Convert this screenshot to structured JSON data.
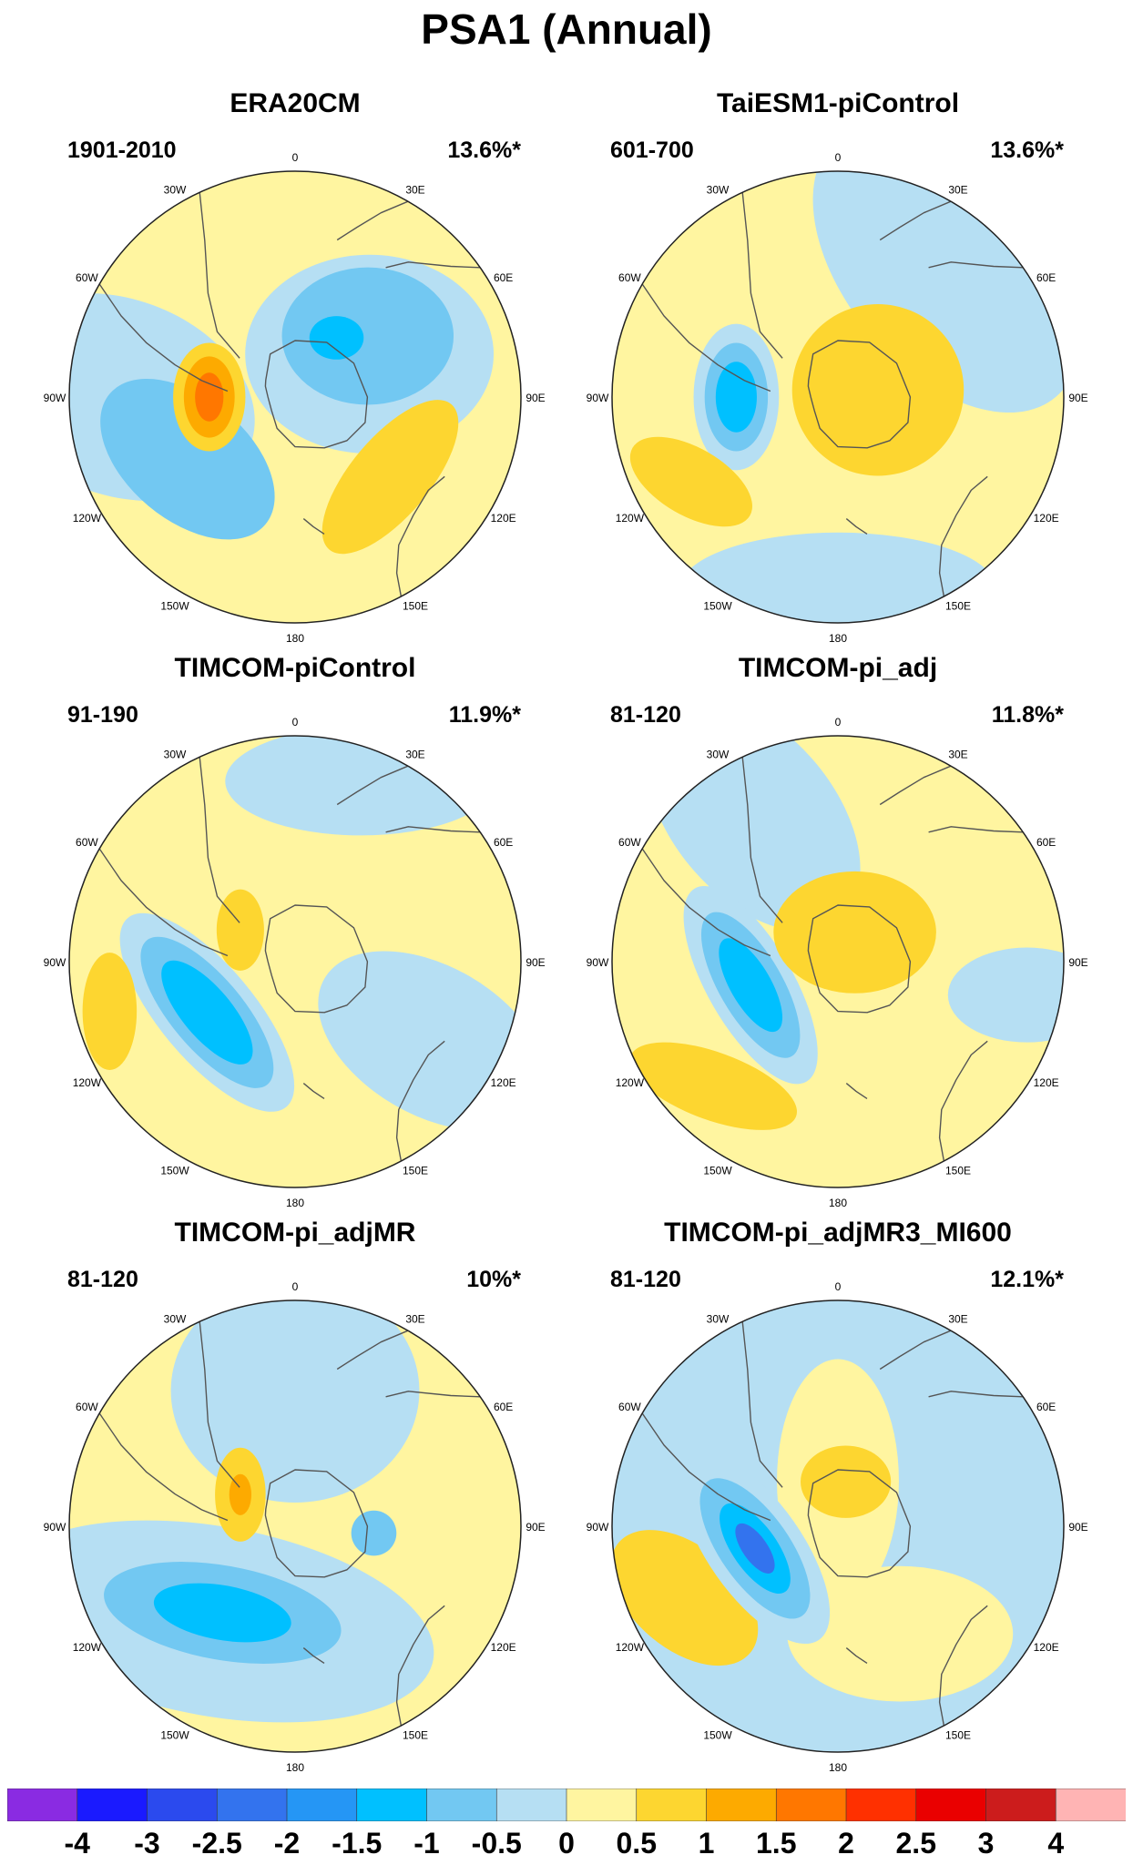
{
  "title": "PSA1 (Annual)",
  "legend": {
    "colors": [
      "#8a2be2",
      "#1a1aff",
      "#2b4aee",
      "#3373ee",
      "#2596f5",
      "#00c0ff",
      "#72c8f2",
      "#b6dff3",
      "#fff5a0",
      "#fdd630",
      "#fdaa00",
      "#ff7700",
      "#ff3000",
      "#ea0000",
      "#cc1c1c",
      "#ffb4b4"
    ],
    "labels": [
      "-4",
      "-3",
      "-2.5",
      "-2",
      "-1.5",
      "-1",
      "-0.5",
      "0",
      "0.5",
      "1",
      "1.5",
      "2",
      "2.5",
      "3",
      "4"
    ]
  },
  "lon_labels": [
    "0",
    "30E",
    "60E",
    "90E",
    "120E",
    "150E",
    "180",
    "150W",
    "120W",
    "90W",
    "60W",
    "30W"
  ],
  "panels": [
    {
      "title": "ERA20CM",
      "period": "1901-2010",
      "variance": "13.6%*",
      "background": "yellow",
      "blobs": [
        {
          "lon": 270,
          "r": 0.78,
          "size": 0.62,
          "ell": [
            1.0,
            0.7
          ],
          "rot": 20,
          "tone": "lightblue"
        },
        {
          "lon": 240,
          "r": 0.55,
          "size": 0.45,
          "ell": [
            1.0,
            0.6
          ],
          "rot": 40,
          "tone": "blue1"
        },
        {
          "lon": 60,
          "r": 0.38,
          "size": 0.55,
          "ell": [
            1.0,
            0.8
          ],
          "rot": 0,
          "tone": "lightblue"
        },
        {
          "lon": 50,
          "r": 0.42,
          "size": 0.38,
          "ell": [
            1.0,
            0.8
          ],
          "rot": 0,
          "tone": "blue1"
        },
        {
          "lon": 35,
          "r": 0.32,
          "size": 0.12,
          "ell": [
            1.0,
            0.8
          ],
          "rot": 0,
          "tone": "blue2"
        },
        {
          "lon": 270,
          "r": 0.38,
          "size": 0.2,
          "ell": [
            0.8,
            1.2
          ],
          "rot": 0,
          "tone": "yellow1"
        },
        {
          "lon": 270,
          "r": 0.38,
          "size": 0.15,
          "ell": [
            0.75,
            1.2
          ],
          "rot": 0,
          "tone": "orange1"
        },
        {
          "lon": 270,
          "r": 0.38,
          "size": 0.09,
          "ell": [
            0.7,
            1.2
          ],
          "rot": 0,
          "tone": "orange2"
        },
        {
          "lon": 130,
          "r": 0.55,
          "size": 0.35,
          "ell": [
            1.2,
            0.5
          ],
          "rot": -50,
          "tone": "yellow1"
        }
      ]
    },
    {
      "title": "TaiESM1-piControl",
      "period": "601-700",
      "variance": "13.6%*",
      "background": "yellow",
      "blobs": [
        {
          "lon": 40,
          "r": 0.75,
          "size": 0.75,
          "ell": [
            1.0,
            0.6
          ],
          "rot": 50,
          "tone": "lightblue"
        },
        {
          "lon": 180,
          "r": 0.85,
          "size": 0.5,
          "ell": [
            1.4,
            0.5
          ],
          "rot": 0,
          "tone": "lightblue"
        },
        {
          "lon": 270,
          "r": 0.45,
          "size": 0.27,
          "ell": [
            0.7,
            1.2
          ],
          "rot": 0,
          "tone": "lightblue"
        },
        {
          "lon": 270,
          "r": 0.45,
          "size": 0.2,
          "ell": [
            0.7,
            1.2
          ],
          "rot": 0,
          "tone": "blue1"
        },
        {
          "lon": 270,
          "r": 0.45,
          "size": 0.13,
          "ell": [
            0.7,
            1.2
          ],
          "rot": 0,
          "tone": "blue2"
        },
        {
          "lon": 80,
          "r": 0.18,
          "size": 0.38,
          "ell": [
            1.0,
            1.0
          ],
          "rot": 0,
          "tone": "yellow1"
        },
        {
          "lon": 240,
          "r": 0.75,
          "size": 0.3,
          "ell": [
            1.0,
            0.5
          ],
          "rot": 30,
          "tone": "yellow1"
        }
      ]
    },
    {
      "title": "TIMCOM-piControl",
      "period": "91-190",
      "variance": "11.9%*",
      "background": "yellow",
      "blobs": [
        {
          "lon": 20,
          "r": 0.85,
          "size": 0.4,
          "ell": [
            1.5,
            0.6
          ],
          "rot": 0,
          "tone": "lightblue"
        },
        {
          "lon": 120,
          "r": 0.7,
          "size": 0.55,
          "ell": [
            1.0,
            0.6
          ],
          "rot": 30,
          "tone": "lightblue"
        },
        {
          "lon": 240,
          "r": 0.45,
          "size": 0.42,
          "ell": [
            1.3,
            0.5
          ],
          "rot": 50,
          "tone": "lightblue"
        },
        {
          "lon": 240,
          "r": 0.45,
          "size": 0.32,
          "ell": [
            1.3,
            0.5
          ],
          "rot": 50,
          "tone": "blue1"
        },
        {
          "lon": 240,
          "r": 0.45,
          "size": 0.22,
          "ell": [
            1.3,
            0.5
          ],
          "rot": 50,
          "tone": "blue2"
        },
        {
          "lon": 300,
          "r": 0.28,
          "size": 0.15,
          "ell": [
            0.7,
            1.2
          ],
          "rot": 0,
          "tone": "yellow1"
        },
        {
          "lon": 255,
          "r": 0.85,
          "size": 0.2,
          "ell": [
            0.6,
            1.3
          ],
          "rot": 0,
          "tone": "yellow1"
        }
      ]
    },
    {
      "title": "TIMCOM-pi_adj",
      "period": "81-120",
      "variance": "11.8%*",
      "background": "yellow",
      "blobs": [
        {
          "lon": 330,
          "r": 0.75,
          "size": 0.6,
          "ell": [
            1.0,
            0.6
          ],
          "rot": 50,
          "tone": "lightblue"
        },
        {
          "lon": 100,
          "r": 0.85,
          "size": 0.35,
          "ell": [
            1.0,
            0.6
          ],
          "rot": 0,
          "tone": "lightblue"
        },
        {
          "lon": 255,
          "r": 0.4,
          "size": 0.38,
          "ell": [
            1.3,
            0.5
          ],
          "rot": 60,
          "tone": "lightblue"
        },
        {
          "lon": 255,
          "r": 0.4,
          "size": 0.28,
          "ell": [
            1.3,
            0.5
          ],
          "rot": 60,
          "tone": "blue1"
        },
        {
          "lon": 255,
          "r": 0.4,
          "size": 0.18,
          "ell": [
            1.3,
            0.5
          ],
          "rot": 60,
          "tone": "blue2"
        },
        {
          "lon": 30,
          "r": 0.15,
          "size": 0.3,
          "ell": [
            1.2,
            0.9
          ],
          "rot": 0,
          "tone": "yellow1"
        },
        {
          "lon": 225,
          "r": 0.78,
          "size": 0.3,
          "ell": [
            1.3,
            0.5
          ],
          "rot": 20,
          "tone": "yellow1"
        }
      ]
    },
    {
      "title": "TIMCOM-pi_adjMR",
      "period": "81-120",
      "variance": "10%*",
      "background": "yellow",
      "blobs": [
        {
          "lon": 0,
          "r": 0.6,
          "size": 0.55,
          "ell": [
            1.0,
            0.9
          ],
          "rot": 0,
          "tone": "lightblue"
        },
        {
          "lon": 220,
          "r": 0.55,
          "size": 0.7,
          "ell": [
            1.4,
            0.6
          ],
          "rot": 10,
          "tone": "lightblue"
        },
        {
          "lon": 220,
          "r": 0.5,
          "size": 0.38,
          "ell": [
            1.4,
            0.55
          ],
          "rot": 10,
          "tone": "blue1"
        },
        {
          "lon": 220,
          "r": 0.5,
          "size": 0.22,
          "ell": [
            1.4,
            0.55
          ],
          "rot": 10,
          "tone": "blue2"
        },
        {
          "lon": 300,
          "r": 0.28,
          "size": 0.16,
          "ell": [
            0.7,
            1.3
          ],
          "rot": 0,
          "tone": "yellow1"
        },
        {
          "lon": 300,
          "r": 0.28,
          "size": 0.07,
          "ell": [
            0.7,
            1.3
          ],
          "rot": 0,
          "tone": "orange1"
        },
        {
          "lon": 95,
          "r": 0.35,
          "size": 0.1,
          "ell": [
            1.0,
            1.0
          ],
          "rot": 0,
          "tone": "blue1"
        }
      ]
    },
    {
      "title": "TIMCOM-pi_adjMR3_MI600",
      "period": "81-120",
      "variance": "12.1%*",
      "background": "lightblue",
      "blobs": [
        {
          "lon": 0,
          "r": 0.2,
          "size": 0.45,
          "ell": [
            0.6,
            1.2
          ],
          "rot": 0,
          "tone": "yellow"
        },
        {
          "lon": 150,
          "r": 0.55,
          "size": 0.5,
          "ell": [
            1.0,
            0.6
          ],
          "rot": 0,
          "tone": "yellow"
        },
        {
          "lon": 245,
          "r": 0.75,
          "size": 0.38,
          "ell": [
            1.0,
            0.6
          ],
          "rot": 40,
          "tone": "yellow1"
        },
        {
          "lon": 255,
          "r": 0.38,
          "size": 0.38,
          "ell": [
            1.3,
            0.55
          ],
          "rot": 55,
          "tone": "lightblue"
        },
        {
          "lon": 255,
          "r": 0.38,
          "size": 0.28,
          "ell": [
            1.3,
            0.55
          ],
          "rot": 55,
          "tone": "blue1"
        },
        {
          "lon": 255,
          "r": 0.38,
          "size": 0.18,
          "ell": [
            1.3,
            0.55
          ],
          "rot": 55,
          "tone": "blue2"
        },
        {
          "lon": 255,
          "r": 0.38,
          "size": 0.1,
          "ell": [
            1.3,
            0.55
          ],
          "rot": 55,
          "tone": "blue3"
        },
        {
          "lon": 10,
          "r": 0.2,
          "size": 0.2,
          "ell": [
            1.0,
            0.8
          ],
          "rot": 0,
          "tone": "yellow1"
        }
      ]
    }
  ]
}
